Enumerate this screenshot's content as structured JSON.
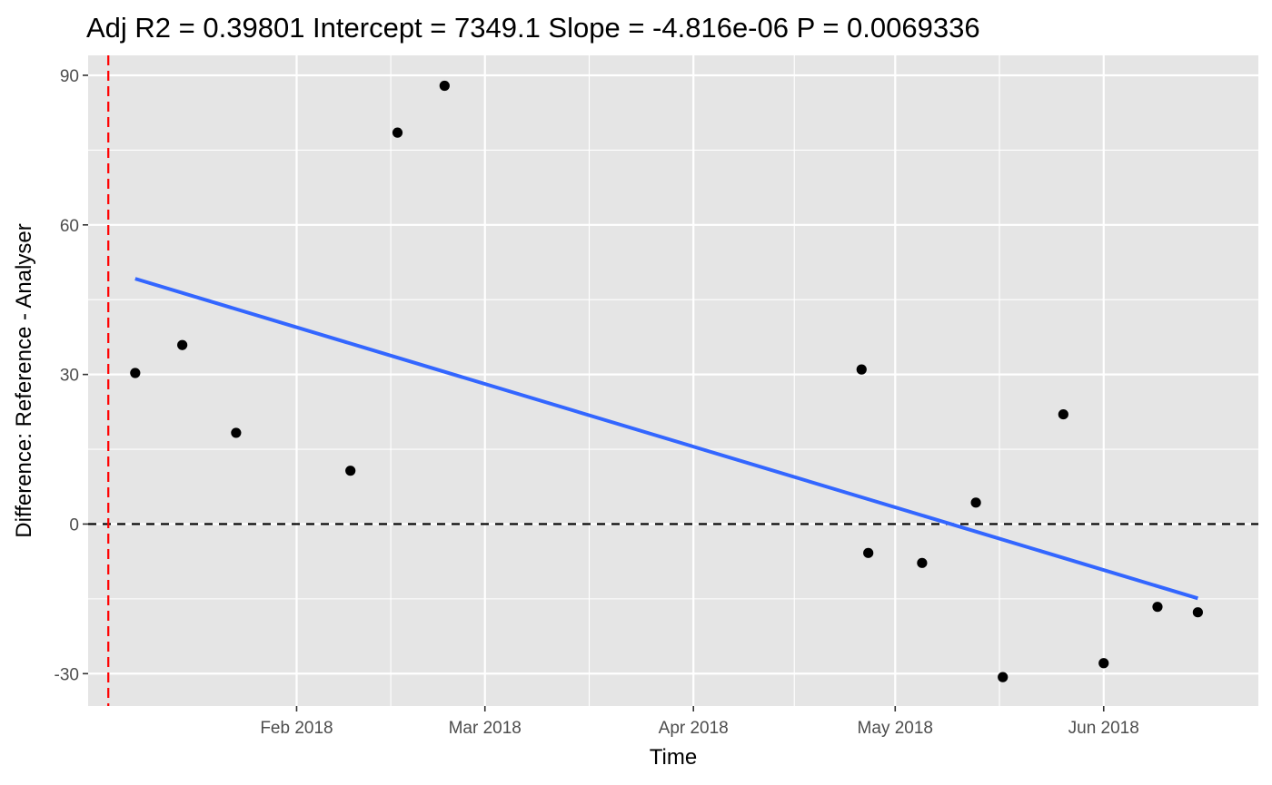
{
  "chart_data": {
    "type": "scatter",
    "title": "Adj R2 =  0.39801 Intercept = 7349.1  Slope = -4.816e-06  P = 0.0069336",
    "xlabel": "Time",
    "ylabel": "Difference: Reference - Analyser",
    "xlim": [
      "2018-01-01",
      "2018-06-24"
    ],
    "ylim": [
      -36.5,
      94
    ],
    "x_ticks": [
      {
        "date": "2018-02-01",
        "label": "Feb 2018"
      },
      {
        "date": "2018-03-01",
        "label": "Mar 2018"
      },
      {
        "date": "2018-04-01",
        "label": "Apr 2018"
      },
      {
        "date": "2018-05-01",
        "label": "May 2018"
      },
      {
        "date": "2018-06-01",
        "label": "Jun 2018"
      }
    ],
    "y_ticks": [
      {
        "value": -30,
        "label": "-30"
      },
      {
        "value": 0,
        "label": "0"
      },
      {
        "value": 30,
        "label": "30"
      },
      {
        "value": 60,
        "label": "60"
      },
      {
        "value": 90,
        "label": "90"
      }
    ],
    "points": [
      {
        "date": "2018-01-08",
        "value": 30.3
      },
      {
        "date": "2018-01-15",
        "value": 35.9
      },
      {
        "date": "2018-01-23",
        "value": 18.3
      },
      {
        "date": "2018-02-09",
        "value": 10.7
      },
      {
        "date": "2018-02-16",
        "value": 78.5
      },
      {
        "date": "2018-02-23",
        "value": 87.9
      },
      {
        "date": "2018-04-26",
        "value": 31.0
      },
      {
        "date": "2018-04-27",
        "value": -5.8
      },
      {
        "date": "2018-05-05",
        "value": -7.8
      },
      {
        "date": "2018-05-13",
        "value": 4.3
      },
      {
        "date": "2018-05-17",
        "value": -30.7
      },
      {
        "date": "2018-05-26",
        "value": 22.0
      },
      {
        "date": "2018-06-01",
        "value": -27.9
      },
      {
        "date": "2018-06-09",
        "value": -16.6
      },
      {
        "date": "2018-06-15",
        "value": -17.7
      }
    ],
    "regression_line": {
      "start": {
        "date": "2018-01-08",
        "value": 49.2
      },
      "end": {
        "date": "2018-06-15",
        "value": -14.9
      },
      "color": "#3366ff"
    },
    "reference_lines": [
      {
        "orientation": "horizontal",
        "value": 0,
        "color": "#000000",
        "style": "dashed"
      },
      {
        "orientation": "vertical",
        "date": "2018-01-04",
        "color": "#ff0000",
        "style": "dashed"
      }
    ],
    "point_color": "#000000",
    "panel_background": "#e5e5e5",
    "grid_color": "#ffffff",
    "grid": true
  }
}
